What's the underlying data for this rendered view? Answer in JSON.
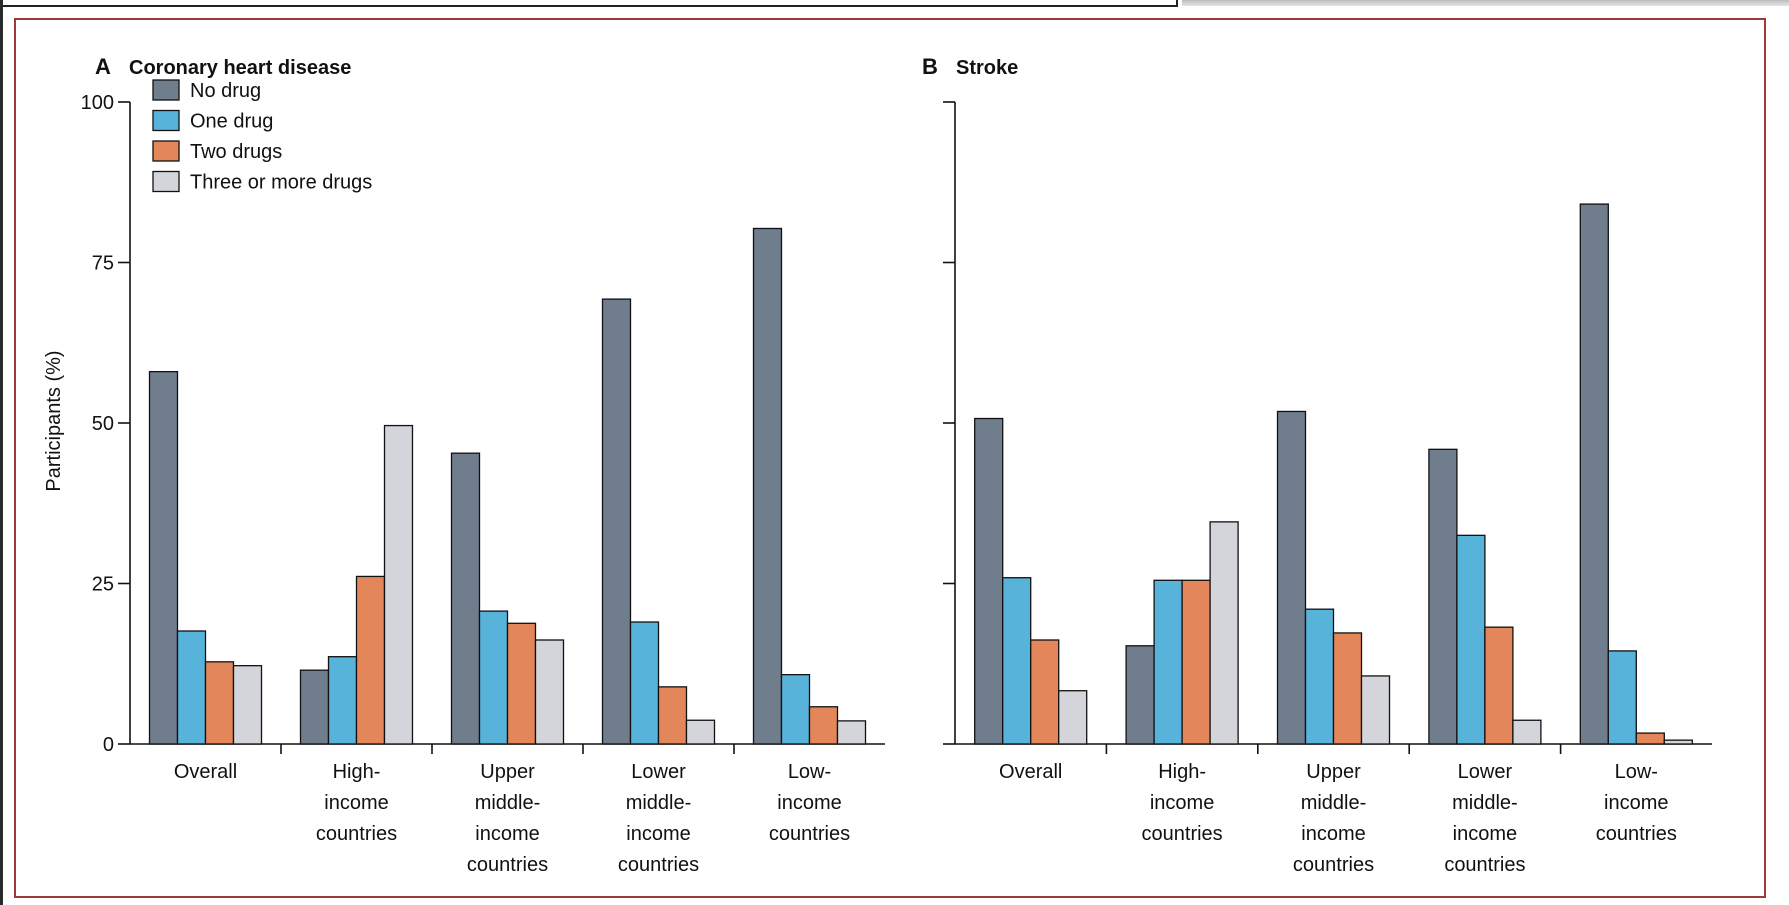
{
  "colors": {
    "no_drug": "#6f7d8c",
    "one_drug": "#58b3db",
    "two_drugs": "#e38659",
    "three_plus": "#d3d5db",
    "frame": "#9a3a3a"
  },
  "chart_data": [
    {
      "type": "bar",
      "panel": "A",
      "title": "Coronary heart disease",
      "ylabel": "Participants (%)",
      "ylim": [
        0,
        100
      ],
      "yticks": [
        0,
        25,
        50,
        75,
        100
      ],
      "legend_position": "top-left",
      "categories": [
        [
          "Overall"
        ],
        [
          "High-",
          "income",
          "countries"
        ],
        [
          "Upper",
          "middle-",
          "income",
          "countries"
        ],
        [
          "Lower",
          "middle-",
          "income",
          "countries"
        ],
        [
          "Low-",
          "income",
          "countries"
        ]
      ],
      "series": [
        {
          "name": "No drug",
          "color_key": "no_drug",
          "values": [
            58.0,
            11.5,
            45.3,
            69.3,
            80.3
          ]
        },
        {
          "name": "One drug",
          "color_key": "one_drug",
          "values": [
            17.6,
            13.6,
            20.7,
            19.0,
            10.8
          ]
        },
        {
          "name": "Two drugs",
          "color_key": "two_drugs",
          "values": [
            12.8,
            26.1,
            18.8,
            8.9,
            5.8
          ]
        },
        {
          "name": "Three or more drugs",
          "color_key": "three_plus",
          "values": [
            12.2,
            49.6,
            16.2,
            3.7,
            3.6
          ]
        }
      ]
    },
    {
      "type": "bar",
      "panel": "B",
      "title": "Stroke",
      "ylabel": "",
      "ylim": [
        0,
        100
      ],
      "yticks": [
        0,
        25,
        50,
        75,
        100
      ],
      "categories": [
        [
          "Overall"
        ],
        [
          "High-",
          "income",
          "countries"
        ],
        [
          "Upper",
          "middle-",
          "income",
          "countries"
        ],
        [
          "Lower",
          "middle-",
          "income",
          "countries"
        ],
        [
          "Low-",
          "income",
          "countries"
        ]
      ],
      "series": [
        {
          "name": "No drug",
          "color_key": "no_drug",
          "values": [
            50.7,
            15.3,
            51.8,
            45.9,
            84.1
          ]
        },
        {
          "name": "One drug",
          "color_key": "one_drug",
          "values": [
            25.9,
            25.5,
            21.0,
            32.5,
            14.5
          ]
        },
        {
          "name": "Two drugs",
          "color_key": "two_drugs",
          "values": [
            16.2,
            25.5,
            17.3,
            18.2,
            1.7
          ]
        },
        {
          "name": "Three or more drugs",
          "color_key": "three_plus",
          "values": [
            8.3,
            34.6,
            10.6,
            3.7,
            0.6
          ]
        }
      ]
    }
  ]
}
